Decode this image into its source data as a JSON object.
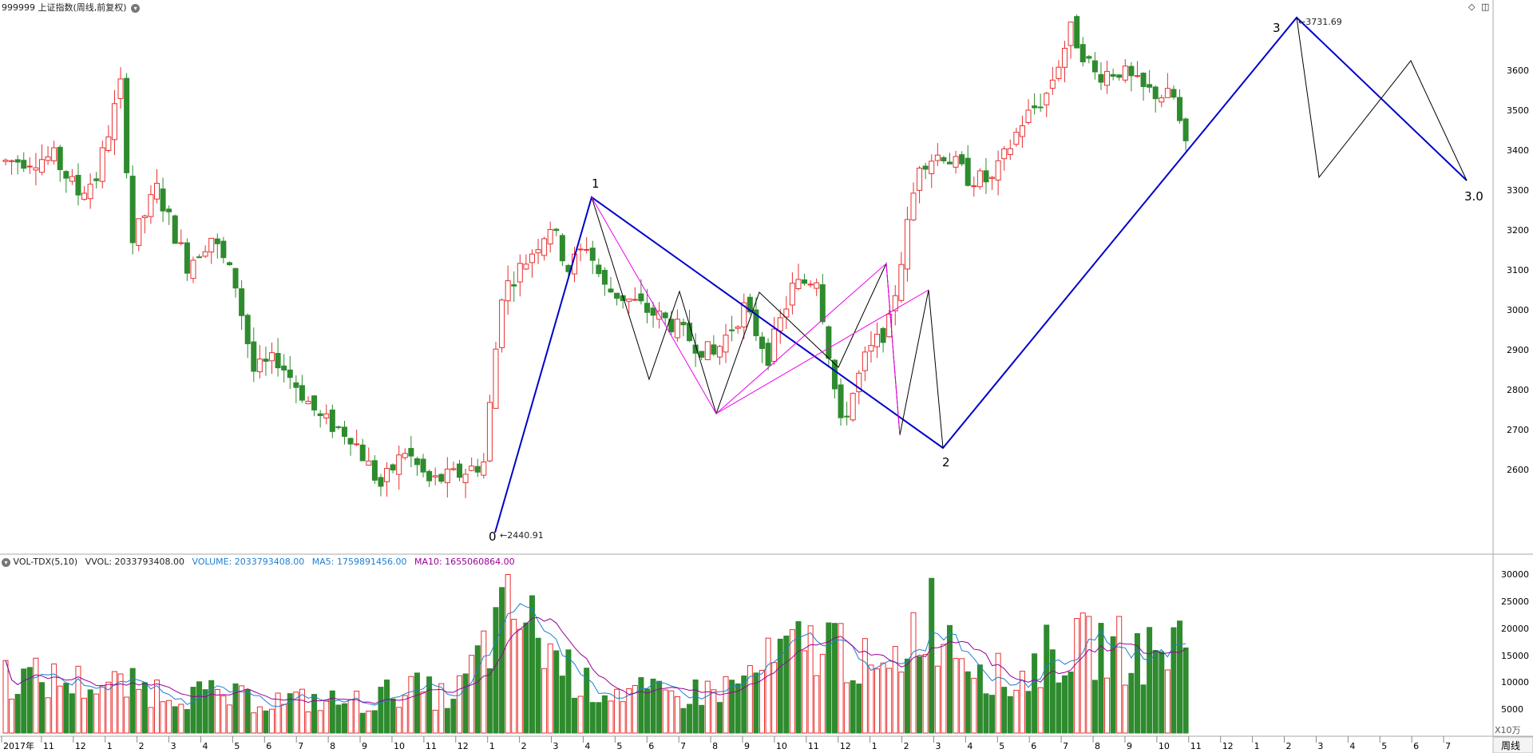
{
  "header": {
    "title": "999999 上证指数(周线,前复权)",
    "dropdown_icon": "chevron-down-icon",
    "toolbar_icons": [
      "diamond-icon",
      "panel-toggle-icon"
    ]
  },
  "price_panel": {
    "y_ticks": [
      "3600",
      "3500",
      "3400",
      "3300",
      "3200",
      "3100",
      "3000",
      "2900",
      "2800",
      "2700",
      "2600"
    ],
    "labels": {
      "low_value": "2440.91",
      "high_value": "3731.69",
      "wave0": "0",
      "wave1": "1",
      "wave2": "2",
      "wave3": "3",
      "wave_end": "3.0"
    }
  },
  "volume_panel": {
    "indicator": "VOL-TDX(5,10)",
    "vvol": "VVOL: 2033793408.00",
    "volume": "VOLUME: 2033793408.00",
    "ma5": "MA5: 1759891456.00",
    "ma10": "MA10: 1655060864.00",
    "y_ticks": [
      "30000",
      "25000",
      "20000",
      "15000",
      "10000",
      "5000"
    ],
    "unit": "X10万",
    "colors": {
      "volume": "#1e7fcf",
      "ma5": "#1e7fcf",
      "ma10": "#990099"
    }
  },
  "time_axis": {
    "labels": [
      "2017年",
      "11",
      "12",
      "1",
      "2",
      "3",
      "4",
      "5",
      "6",
      "7",
      "8",
      "9",
      "10",
      "11",
      "12",
      "1",
      "2",
      "3",
      "4",
      "5",
      "6",
      "7",
      "8",
      "9",
      "10",
      "11",
      "12",
      "1",
      "2",
      "3",
      "4",
      "5",
      "6",
      "7",
      "8",
      "9",
      "10",
      "11",
      "12",
      "1",
      "2",
      "3",
      "4",
      "5",
      "6",
      "7"
    ],
    "period_button": "周线"
  },
  "colors": {
    "up": "#e83030",
    "down": "#2e8b2e",
    "wave_major": "#0000cc",
    "wave_minor": "#000000",
    "wave_alt": "#ee00ee",
    "grid": "#cccccc"
  },
  "chart_data": {
    "type": "candlestick",
    "price_range": [
      2440.91,
      3731.69
    ],
    "marked_points": [
      {
        "label": "0",
        "price": 2440.91
      },
      {
        "label": "1",
        "price": 3288
      },
      {
        "label": "2",
        "price": 2655
      },
      {
        "label": "3",
        "price": 3731.69
      },
      {
        "label": "3.0",
        "price": 3325
      }
    ],
    "volume_ylim": [
      0,
      30000
    ]
  }
}
